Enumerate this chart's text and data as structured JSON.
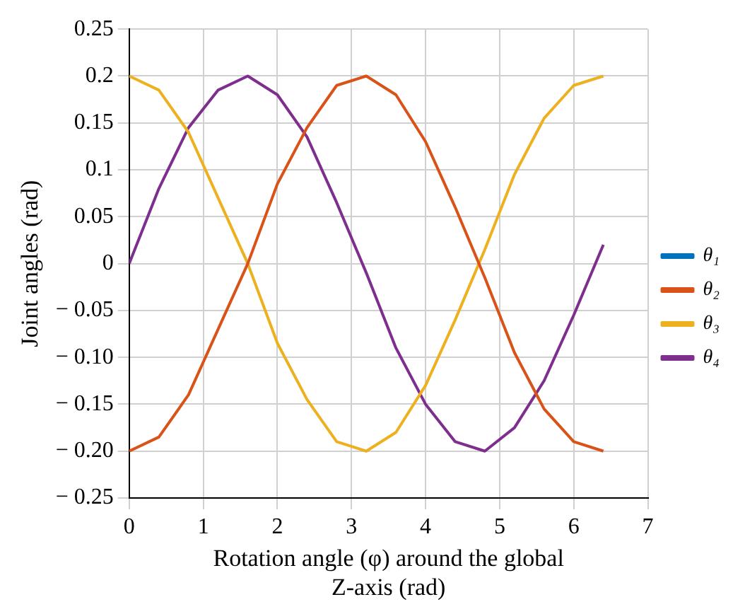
{
  "chart_data": {
    "type": "line",
    "xlabel": "Rotation angle (φ) around the global Z-axis (rad)",
    "ylabel": "Joint angles (rad)",
    "x": [
      0,
      0.4,
      0.8,
      1.2,
      1.6,
      2.0,
      2.4,
      2.8,
      3.2,
      3.6,
      4.0,
      4.4,
      4.8,
      5.2,
      5.6,
      6.0,
      6.4
    ],
    "series": [
      {
        "name": "θ₁",
        "color": "#0072bd",
        "values": [
          null,
          null,
          null,
          null,
          null,
          null,
          null,
          null,
          null,
          null,
          null,
          null,
          null,
          null,
          null,
          null,
          null
        ]
      },
      {
        "name": "θ₂",
        "color": "#d95319",
        "values": [
          -0.2,
          -0.185,
          -0.14,
          -0.07,
          0,
          0.085,
          0.145,
          0.19,
          0.2,
          0.18,
          0.13,
          0.06,
          -0.015,
          -0.095,
          -0.155,
          -0.19,
          -0.2
        ]
      },
      {
        "name": "θ₃",
        "color": "#edb120",
        "values": [
          0.2,
          0.185,
          0.14,
          0.07,
          0,
          -0.085,
          -0.145,
          -0.19,
          -0.2,
          -0.18,
          -0.13,
          -0.06,
          0.015,
          0.095,
          0.155,
          0.19,
          0.2
        ]
      },
      {
        "name": "θ₄",
        "color": "#7e2f8e",
        "values": [
          0,
          0.08,
          0.145,
          0.185,
          0.2,
          0.18,
          0.135,
          0.065,
          -0.01,
          -0.09,
          -0.15,
          -0.19,
          -0.2,
          -0.175,
          -0.125,
          -0.055,
          0.02
        ]
      }
    ],
    "xlim": [
      0,
      7
    ],
    "xticks": [
      0,
      1,
      2,
      3,
      4,
      5,
      6,
      7
    ],
    "ylim": [
      -0.25,
      0.25
    ],
    "yticks": [
      {
        "value": -0.25,
        "label": "− 0.25"
      },
      {
        "value": -0.2,
        "label": "− 0.20"
      },
      {
        "value": -0.15,
        "label": "− 0.15"
      },
      {
        "value": -0.1,
        "label": "− 0.10"
      },
      {
        "value": -0.05,
        "label": "− 0.05"
      },
      0,
      0.05,
      0.1,
      0.15,
      0.2,
      0.25
    ],
    "grid": true,
    "legend": "right",
    "marker": "none",
    "line_style": "solid"
  }
}
